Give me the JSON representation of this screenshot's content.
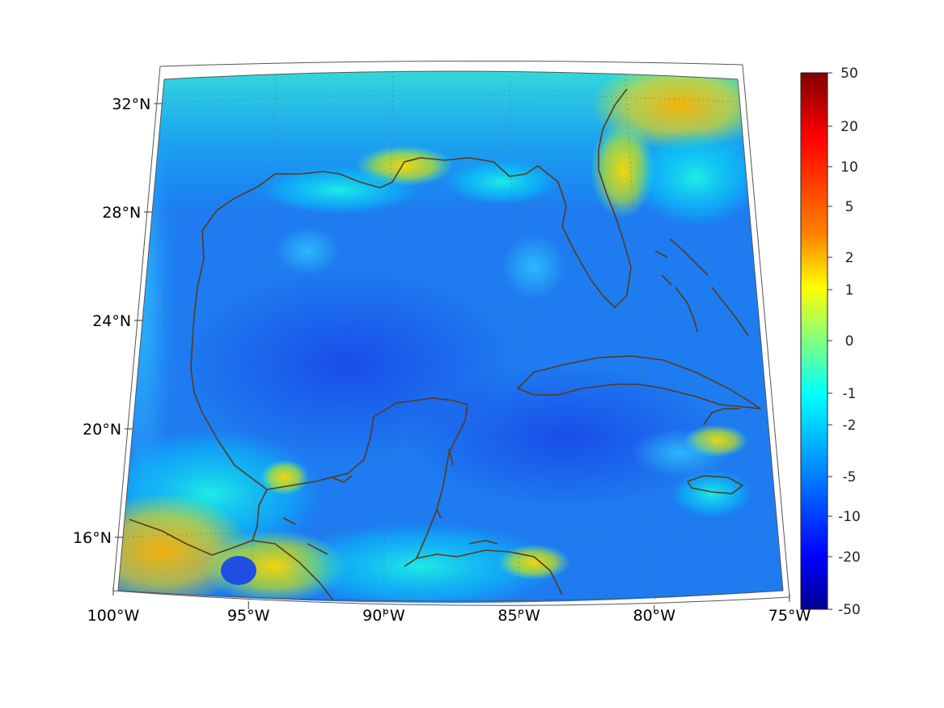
{
  "map": {
    "region": "Gulf of Mexico and Caribbean",
    "projection": "conic",
    "lon_range": [
      -100,
      -75
    ],
    "lat_range": [
      14,
      33
    ],
    "lon_ticks": [
      {
        "value": -100,
        "label": "100°W"
      },
      {
        "value": -95,
        "label": "95°W"
      },
      {
        "value": -90,
        "label": "90°W"
      },
      {
        "value": -85,
        "label": "85°W"
      },
      {
        "value": -80,
        "label": "80°W"
      },
      {
        "value": -75,
        "label": "75°W"
      }
    ],
    "lat_ticks": [
      {
        "value": 32,
        "label": "32°N"
      },
      {
        "value": 28,
        "label": "28°N"
      },
      {
        "value": 24,
        "label": "24°N"
      },
      {
        "value": 20,
        "label": "20°N"
      },
      {
        "value": 16,
        "label": "16°N"
      }
    ],
    "grid": true,
    "coastline_color": "#5a3a1a"
  },
  "colorbar": {
    "placement": "right",
    "colormap": "jet",
    "ticks": [
      "50",
      "20",
      "10",
      "5",
      "2",
      "1",
      "0",
      "-1",
      "-2",
      "-5",
      "-10",
      "-20",
      "-50"
    ]
  }
}
